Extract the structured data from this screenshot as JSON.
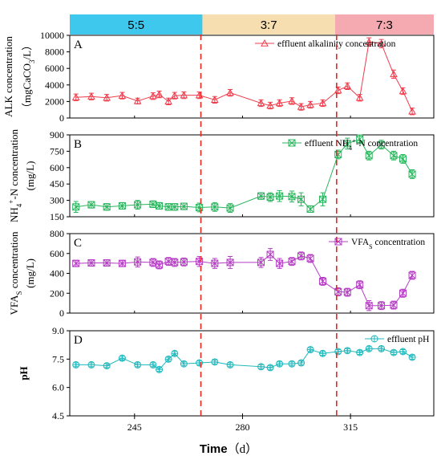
{
  "phases": [
    {
      "label": "5:5",
      "color": "#3fc8ee",
      "x_start": 224,
      "x_end": 267
    },
    {
      "label": "3:7",
      "color": "#f7deb0",
      "x_start": 267,
      "x_end": 310
    },
    {
      "label": "7:3",
      "color": "#f5a9b0",
      "x_start": 310,
      "x_end": 342
    }
  ],
  "xlabel_main": "Time",
  "xlabel_unit": "（d）",
  "divider_color": "#e8281f",
  "divider_days": [
    266.5,
    310.5
  ],
  "chart_data": [
    {
      "type": "line",
      "panel": "A",
      "legend": "effluent alkalinity concentration",
      "ylabel": "ALK concentration (mgCaCO3/L)",
      "ylabel_parts": [
        "ALK concentration",
        "（mgCaCO",
        "3",
        "/L）"
      ],
      "color": "#f03c4c",
      "marker": "triangle",
      "ylim": [
        0,
        10000
      ],
      "yticks": [
        0,
        2000,
        4000,
        6000,
        8000,
        10000
      ],
      "x": [
        226,
        231,
        236,
        241,
        246,
        251,
        253,
        256,
        258,
        261,
        266,
        271,
        276,
        286,
        289,
        292,
        296,
        299,
        302,
        306,
        311,
        314,
        318,
        321,
        325,
        329,
        332,
        335
      ],
      "y": [
        2500,
        2600,
        2450,
        2700,
        2050,
        2650,
        2850,
        2000,
        2700,
        2750,
        2750,
        2200,
        3050,
        1800,
        1500,
        1800,
        2050,
        1350,
        1600,
        1800,
        3350,
        3850,
        2450,
        9200,
        9000,
        5300,
        3250,
        800
      ],
      "err": [
        400,
        400,
        400,
        400,
        350,
        400,
        400,
        400,
        400,
        400,
        400,
        400,
        400,
        400,
        400,
        400,
        400,
        400,
        400,
        400,
        400,
        400,
        400,
        500,
        500,
        500,
        400,
        400
      ]
    },
    {
      "type": "line",
      "panel": "B",
      "legend": "effluent NH4+-N concentration",
      "legend_parts": [
        "effluent NH",
        "4",
        "+",
        "-N concentration"
      ],
      "ylabel": "NH4+-N concentration (mg/L)",
      "ylabel_parts": [
        "NH",
        "4",
        "+",
        "-N concentration"
      ],
      "ylabel2": "(mg/L)",
      "color": "#28b55c",
      "marker": "square-x",
      "ylim": [
        150,
        900
      ],
      "yticks": [
        150,
        300,
        450,
        600,
        750,
        900
      ],
      "x": [
        226,
        231,
        236,
        241,
        246,
        251,
        253,
        256,
        258,
        261,
        266,
        271,
        276,
        286,
        289,
        292,
        296,
        299,
        302,
        306,
        311,
        314,
        318,
        321,
        325,
        329,
        332,
        335
      ],
      "y": [
        240,
        260,
        240,
        250,
        260,
        265,
        250,
        240,
        240,
        245,
        235,
        240,
        230,
        340,
        330,
        340,
        335,
        310,
        220,
        310,
        720,
        820,
        860,
        710,
        810,
        710,
        680,
        540
      ],
      "err": [
        50,
        30,
        30,
        30,
        40,
        30,
        30,
        30,
        30,
        30,
        40,
        40,
        40,
        30,
        40,
        50,
        50,
        60,
        30,
        60,
        40,
        50,
        40,
        40,
        40,
        40,
        40,
        40
      ]
    },
    {
      "type": "line",
      "panel": "C",
      "legend": "VFAS concentration",
      "legend_parts": [
        "VFA",
        "S",
        " concentration"
      ],
      "ylabel": "VFAS concentration (mg/L)",
      "ylabel_parts": [
        "VFA",
        "S",
        " concentration"
      ],
      "ylabel2": "(mg/L)",
      "color": "#b53cc4",
      "marker": "square-x",
      "ylim": [
        0,
        800
      ],
      "yticks": [
        0,
        200,
        400,
        600,
        800
      ],
      "x": [
        226,
        231,
        236,
        241,
        246,
        251,
        253,
        256,
        258,
        261,
        266,
        271,
        276,
        286,
        289,
        292,
        296,
        299,
        302,
        306,
        311,
        314,
        318,
        321,
        325,
        329,
        332,
        335
      ],
      "y": [
        500,
        505,
        505,
        500,
        515,
        510,
        485,
        520,
        510,
        515,
        520,
        500,
        510,
        510,
        590,
        500,
        520,
        575,
        550,
        320,
        215,
        210,
        285,
        75,
        75,
        80,
        200,
        380
      ],
      "err": [
        30,
        30,
        30,
        30,
        50,
        40,
        40,
        40,
        40,
        40,
        50,
        50,
        60,
        50,
        60,
        50,
        40,
        40,
        40,
        40,
        40,
        40,
        40,
        50,
        40,
        40,
        40,
        40
      ]
    },
    {
      "type": "line",
      "panel": "D",
      "legend": "effluent pH",
      "ylabel": "pH",
      "color": "#1fb8bc",
      "marker": "circle-cross",
      "ylim": [
        4.5,
        9.0
      ],
      "yticks": [
        4.5,
        6.0,
        7.5,
        9.0
      ],
      "ytick_labels": [
        "4.5",
        "6.0",
        "7.5",
        "9.0"
      ],
      "x": [
        226,
        231,
        236,
        241,
        246,
        251,
        253,
        256,
        258,
        261,
        266,
        271,
        276,
        286,
        289,
        292,
        296,
        299,
        302,
        306,
        311,
        314,
        318,
        321,
        325,
        329,
        332,
        335
      ],
      "y": [
        7.2,
        7.2,
        7.15,
        7.55,
        7.2,
        7.2,
        6.95,
        7.5,
        7.8,
        7.25,
        7.3,
        7.35,
        7.2,
        7.1,
        7.05,
        7.25,
        7.25,
        7.3,
        8.0,
        7.8,
        7.9,
        7.95,
        7.85,
        8.05,
        8.05,
        7.85,
        7.9,
        7.6
      ],
      "err": [
        0.1,
        0.1,
        0.1,
        0.1,
        0.1,
        0.1,
        0.1,
        0.1,
        0.1,
        0.1,
        0.1,
        0.1,
        0.1,
        0.1,
        0.1,
        0.1,
        0.1,
        0.1,
        0.1,
        0.1,
        0.1,
        0.1,
        0.1,
        0.1,
        0.1,
        0.1,
        0.1,
        0.1
      ]
    }
  ],
  "xaxis": {
    "xlim": [
      224,
      342
    ],
    "ticks": [
      245,
      280,
      315
    ]
  }
}
